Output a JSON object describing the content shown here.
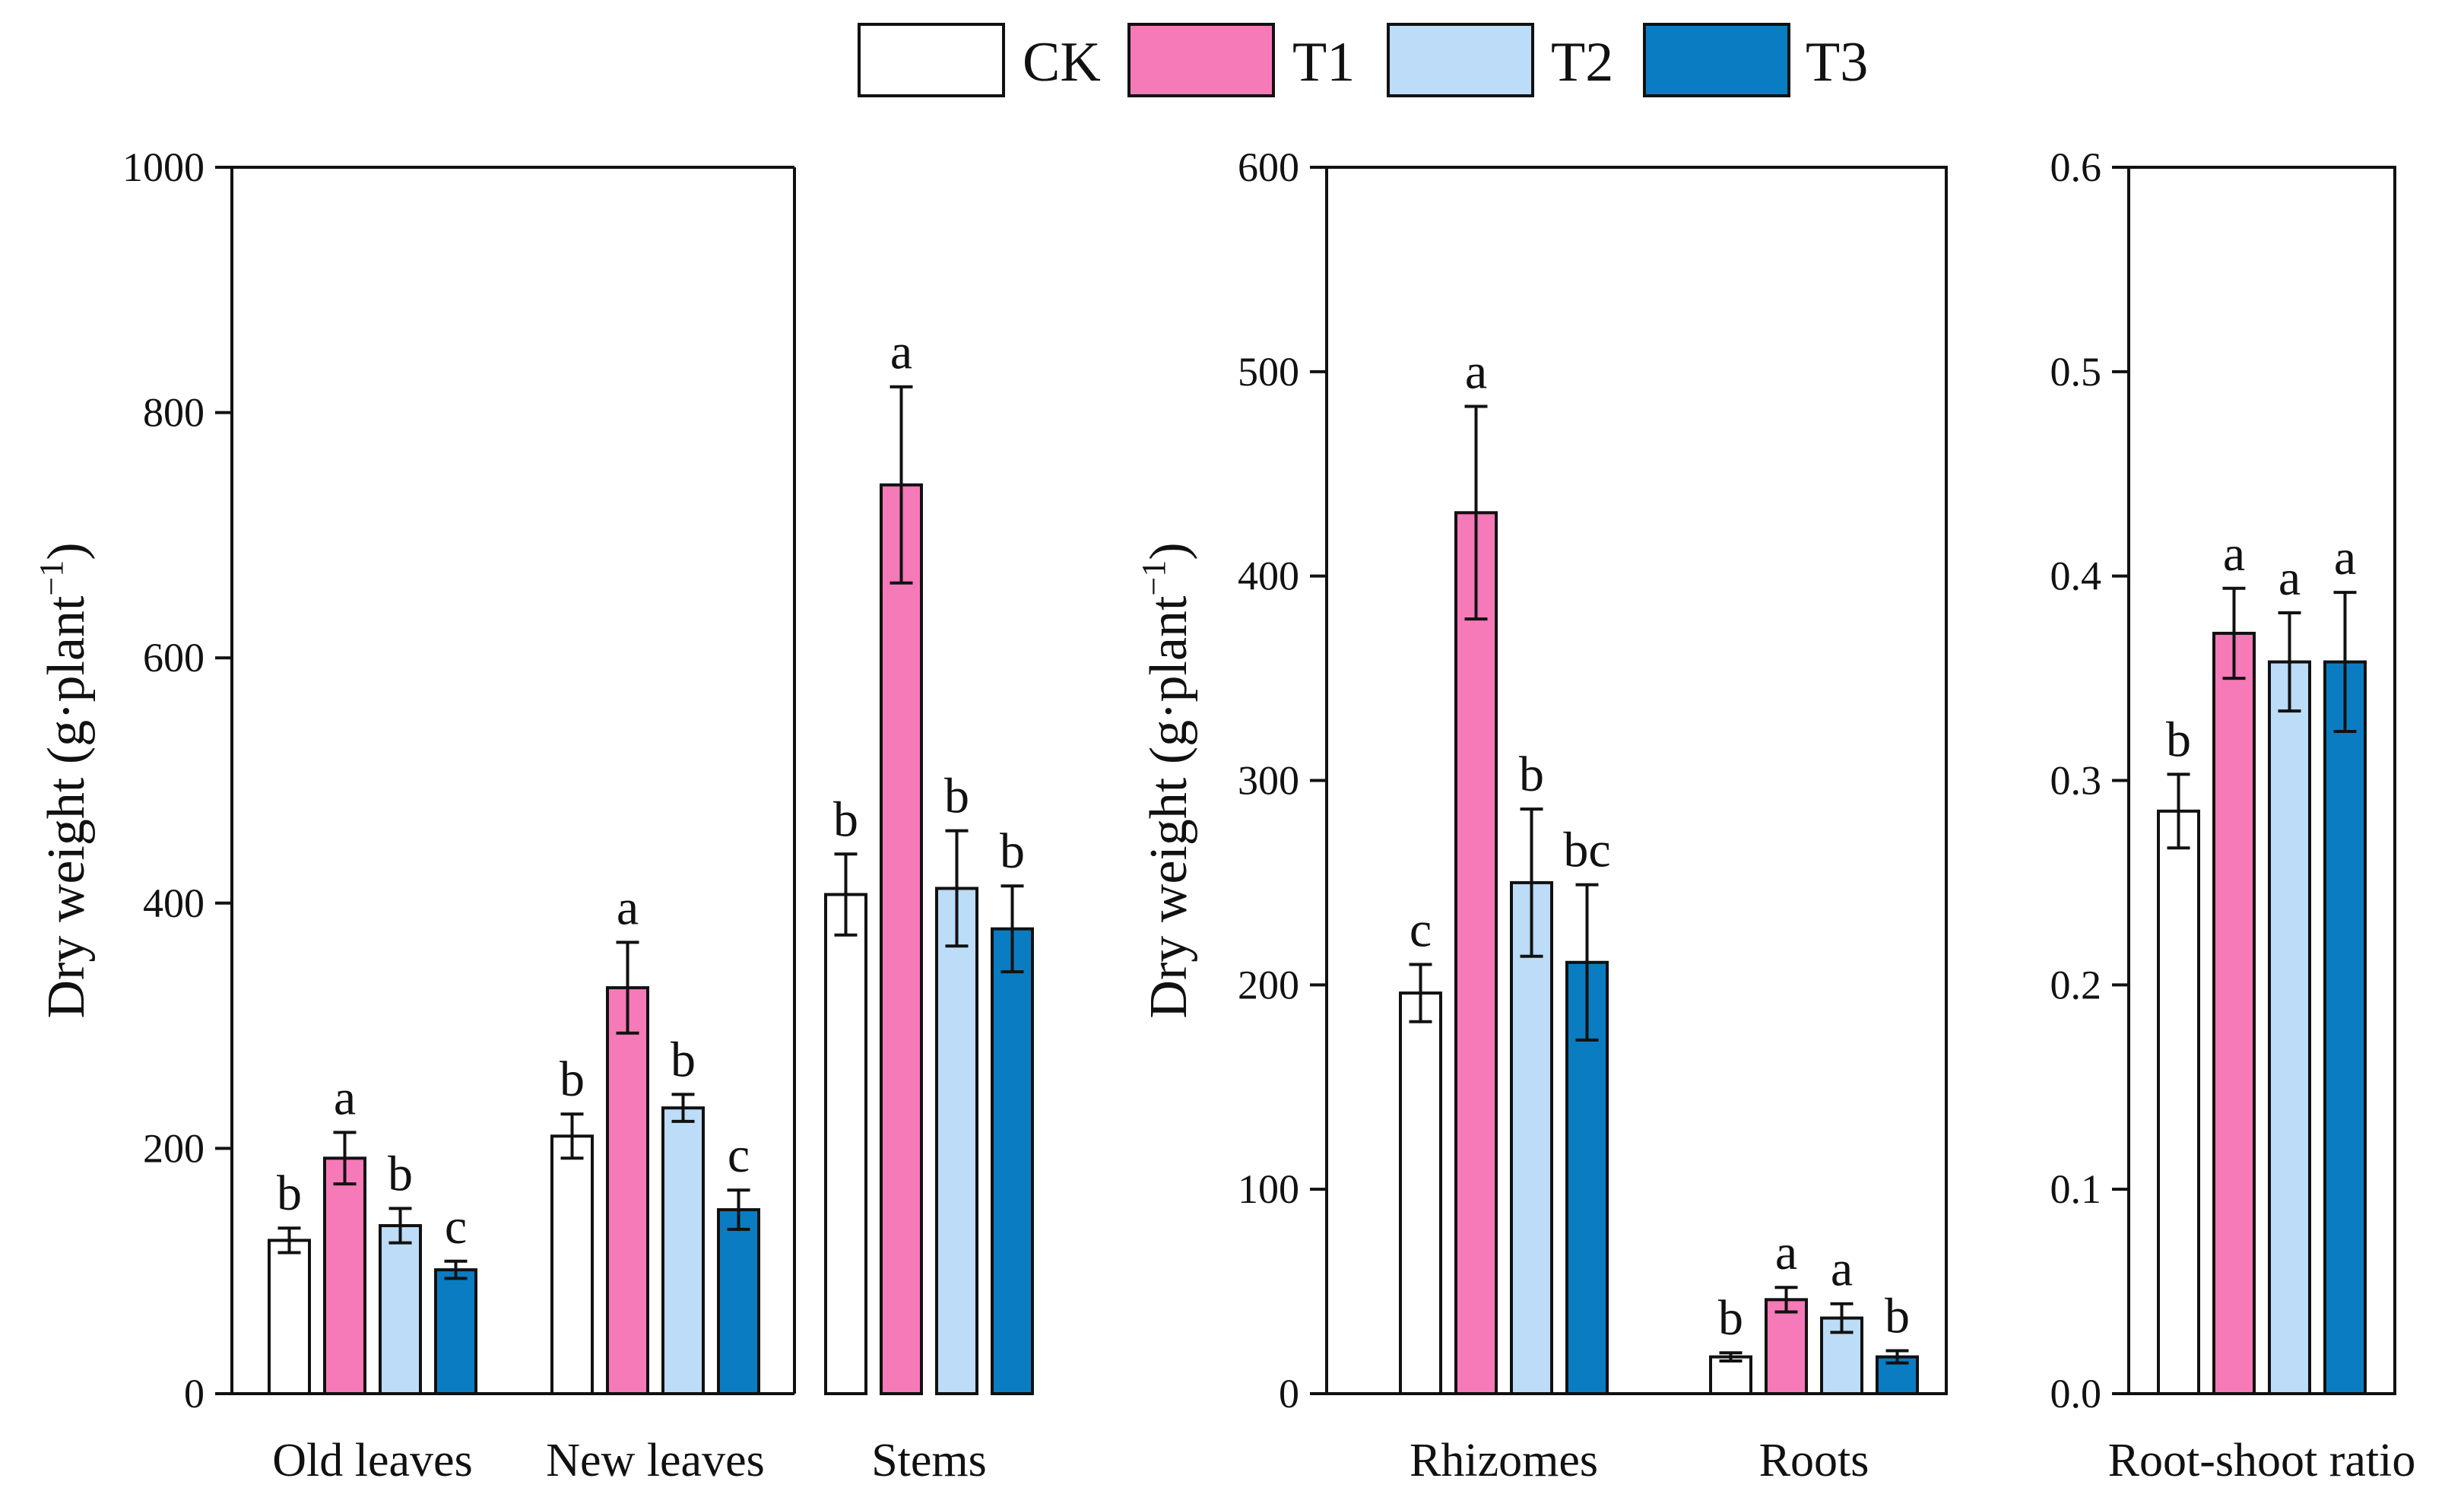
{
  "colors": {
    "CK": "#ffffff",
    "T1": "#f57ab7",
    "T2": "#bcdcf7",
    "T3": "#0a7dc2",
    "axis": "#111111"
  },
  "legend": [
    {
      "key": "CK",
      "label": "CK"
    },
    {
      "key": "T1",
      "label": "T1"
    },
    {
      "key": "T2",
      "label": "T2"
    },
    {
      "key": "T3",
      "label": "T3"
    }
  ],
  "chart_data": [
    {
      "type": "bar",
      "panel": "aboveground",
      "ylabel": "Dry weight  (g·plant",
      "ylabel_sup": "−1",
      "ylabel_close": ")",
      "ylim": [
        0,
        1000
      ],
      "yticks": [
        0,
        200,
        400,
        600,
        800,
        1000
      ],
      "categories": [
        "Old leaves",
        "New leaves",
        "Stems"
      ],
      "series": [
        {
          "name": "CK",
          "values": [
            125,
            210,
            407
          ],
          "errors": [
            10,
            18,
            33
          ],
          "letters": [
            "b",
            "b",
            "b"
          ]
        },
        {
          "name": "T1",
          "values": [
            192,
            331,
            741
          ],
          "errors": [
            21,
            37,
            80
          ],
          "letters": [
            "a",
            "a",
            "a"
          ]
        },
        {
          "name": "T2",
          "values": [
            137,
            233,
            412
          ],
          "errors": [
            14,
            11,
            47
          ],
          "letters": [
            "b",
            "b",
            "b"
          ]
        },
        {
          "name": "T3",
          "values": [
            101,
            150,
            379
          ],
          "errors": [
            7,
            16,
            35
          ],
          "letters": [
            "c",
            "c",
            "b"
          ]
        }
      ]
    },
    {
      "type": "bar",
      "panel": "belowground",
      "ylabel": "Dry weight  (g·plant",
      "ylabel_sup": "−1",
      "ylabel_close": ")",
      "ylim": [
        0,
        600
      ],
      "yticks": [
        0,
        100,
        200,
        300,
        400,
        500,
        600
      ],
      "categories": [
        "Rhizomes",
        "Roots"
      ],
      "series": [
        {
          "name": "CK",
          "values": [
            196,
            18
          ],
          "errors": [
            14,
            2
          ],
          "letters": [
            "c",
            "b"
          ]
        },
        {
          "name": "T1",
          "values": [
            431,
            46
          ],
          "errors": [
            52,
            6
          ],
          "letters": [
            "a",
            "a"
          ]
        },
        {
          "name": "T2",
          "values": [
            250,
            37
          ],
          "errors": [
            36,
            7
          ],
          "letters": [
            "b",
            "a"
          ]
        },
        {
          "name": "T3",
          "values": [
            211,
            18
          ],
          "errors": [
            38,
            3
          ],
          "letters": [
            "bc",
            "b"
          ]
        }
      ]
    },
    {
      "type": "bar",
      "panel": "ratio",
      "ylabel": "",
      "ylim": [
        0,
        0.6
      ],
      "yticks": [
        "0.0",
        "0.1",
        "0.2",
        "0.3",
        "0.4",
        "0.5",
        "0.6"
      ],
      "categories": [
        "Root-shoot ratio"
      ],
      "series": [
        {
          "name": "CK",
          "values": [
            0.285
          ],
          "errors": [
            0.018
          ],
          "letters": [
            "b"
          ]
        },
        {
          "name": "T1",
          "values": [
            0.372
          ],
          "errors": [
            0.022
          ],
          "letters": [
            "a"
          ]
        },
        {
          "name": "T2",
          "values": [
            0.358
          ],
          "errors": [
            0.024
          ],
          "letters": [
            "a"
          ]
        },
        {
          "name": "T3",
          "values": [
            0.358
          ],
          "errors": [
            0.034
          ],
          "letters": [
            "a"
          ]
        }
      ]
    }
  ]
}
